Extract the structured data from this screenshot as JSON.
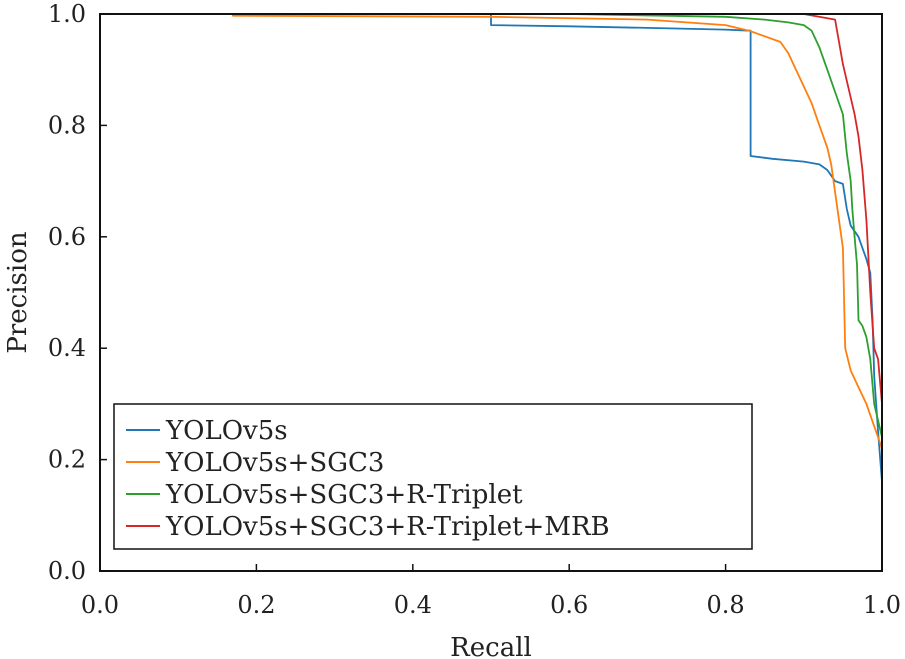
{
  "chart_data": {
    "type": "line",
    "title": "",
    "xlabel": "Recall",
    "ylabel": "Precision",
    "xlim": [
      0.0,
      1.0
    ],
    "ylim": [
      0.0,
      1.0
    ],
    "xticks": [
      "0.0",
      "0.2",
      "0.4",
      "0.6",
      "0.8",
      "1.0"
    ],
    "yticks": [
      "0.0",
      "0.2",
      "0.4",
      "0.6",
      "0.8",
      "1.0"
    ],
    "grid": false,
    "legend_position": "bottom-left",
    "series": [
      {
        "name": "YOLOv5s",
        "color": "#1f77b4",
        "points": [
          [
            0.0,
            1.0
          ],
          [
            0.5,
            1.0
          ],
          [
            0.5,
            0.98
          ],
          [
            0.6,
            0.978
          ],
          [
            0.7,
            0.975
          ],
          [
            0.8,
            0.972
          ],
          [
            0.832,
            0.97
          ],
          [
            0.832,
            0.745
          ],
          [
            0.86,
            0.74
          ],
          [
            0.9,
            0.735
          ],
          [
            0.92,
            0.73
          ],
          [
            0.93,
            0.72
          ],
          [
            0.94,
            0.7
          ],
          [
            0.95,
            0.695
          ],
          [
            0.955,
            0.65
          ],
          [
            0.96,
            0.62
          ],
          [
            0.97,
            0.6
          ],
          [
            0.975,
            0.58
          ],
          [
            0.98,
            0.56
          ],
          [
            0.985,
            0.535
          ],
          [
            0.988,
            0.45
          ],
          [
            0.99,
            0.35
          ],
          [
            0.995,
            0.25
          ],
          [
            1.0,
            0.16
          ],
          [
            1.0,
            0.0
          ]
        ]
      },
      {
        "name": "YOLOv5s+SGC3",
        "color": "#ff7f0e",
        "points": [
          [
            0.0,
            1.0
          ],
          [
            0.17,
            1.0
          ],
          [
            0.17,
            0.997
          ],
          [
            0.5,
            0.995
          ],
          [
            0.7,
            0.99
          ],
          [
            0.8,
            0.98
          ],
          [
            0.83,
            0.97
          ],
          [
            0.85,
            0.96
          ],
          [
            0.87,
            0.95
          ],
          [
            0.88,
            0.93
          ],
          [
            0.89,
            0.9
          ],
          [
            0.9,
            0.87
          ],
          [
            0.91,
            0.84
          ],
          [
            0.92,
            0.8
          ],
          [
            0.93,
            0.76
          ],
          [
            0.935,
            0.73
          ],
          [
            0.94,
            0.68
          ],
          [
            0.945,
            0.63
          ],
          [
            0.95,
            0.58
          ],
          [
            0.953,
            0.4
          ],
          [
            0.96,
            0.36
          ],
          [
            0.97,
            0.33
          ],
          [
            0.98,
            0.3
          ],
          [
            0.99,
            0.26
          ],
          [
            1.0,
            0.22
          ],
          [
            1.0,
            0.0
          ]
        ]
      },
      {
        "name": "YOLOv5s+SGC3+R-Triplet",
        "color": "#2ca02c",
        "points": [
          [
            0.0,
            1.0
          ],
          [
            0.6,
            1.0
          ],
          [
            0.8,
            0.995
          ],
          [
            0.85,
            0.99
          ],
          [
            0.88,
            0.985
          ],
          [
            0.9,
            0.98
          ],
          [
            0.91,
            0.97
          ],
          [
            0.92,
            0.94
          ],
          [
            0.93,
            0.9
          ],
          [
            0.94,
            0.86
          ],
          [
            0.95,
            0.82
          ],
          [
            0.955,
            0.75
          ],
          [
            0.96,
            0.7
          ],
          [
            0.962,
            0.65
          ],
          [
            0.965,
            0.6
          ],
          [
            0.968,
            0.55
          ],
          [
            0.97,
            0.45
          ],
          [
            0.975,
            0.44
          ],
          [
            0.98,
            0.42
          ],
          [
            0.985,
            0.38
          ],
          [
            0.99,
            0.3
          ],
          [
            1.0,
            0.24
          ],
          [
            1.0,
            0.0
          ]
        ]
      },
      {
        "name": "YOLOv5s+SGC3+R-Triplet+MRB",
        "color": "#d62728",
        "points": [
          [
            0.0,
            1.0
          ],
          [
            0.9,
            1.0
          ],
          [
            0.94,
            0.99
          ],
          [
            0.945,
            0.95
          ],
          [
            0.95,
            0.91
          ],
          [
            0.955,
            0.88
          ],
          [
            0.96,
            0.85
          ],
          [
            0.965,
            0.82
          ],
          [
            0.97,
            0.78
          ],
          [
            0.975,
            0.72
          ],
          [
            0.98,
            0.63
          ],
          [
            0.985,
            0.5
          ],
          [
            0.988,
            0.44
          ],
          [
            0.99,
            0.4
          ],
          [
            0.995,
            0.38
          ],
          [
            1.0,
            0.3
          ],
          [
            1.0,
            0.0
          ]
        ]
      }
    ]
  }
}
